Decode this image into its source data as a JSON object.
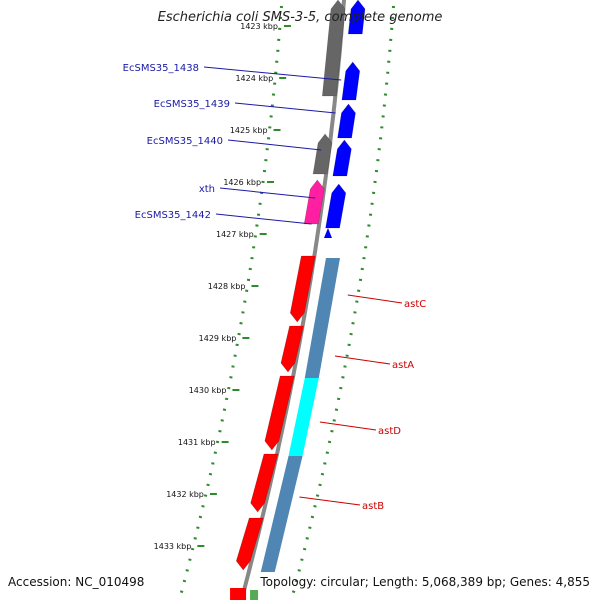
{
  "title": "Escherichia coli SMS-3-5, complete genome",
  "accession": "Accession: NC_010498",
  "topology": "Topology: circular; Length: 5,068,389 bp; Genes: 4,855",
  "colors": {
    "backbone": "#888888",
    "dots": "#2e8b2e",
    "forward_gene": "#ff0000",
    "reverse_gene": "#0000ff",
    "pseudo": "#666666",
    "xth": "#ff1fa0",
    "cog_blue": "#4f86b4",
    "cog_cyan": "#00ffff",
    "label_blue": "#1a1aa6",
    "label_red": "#cc0000"
  },
  "kbp_ticks": [
    "1423 kbp",
    "1424 kbp",
    "1425 kbp",
    "1426 kbp",
    "1427 kbp",
    "1428 kbp",
    "1429 kbp",
    "1430 kbp",
    "1431 kbp",
    "1432 kbp",
    "1433 kbp"
  ],
  "left_genes": [
    "EcSMS35_1438",
    "EcSMS35_1439",
    "EcSMS35_1440",
    "xth",
    "EcSMS35_1442"
  ],
  "right_genes": [
    "astC",
    "astA",
    "astD",
    "astB"
  ]
}
